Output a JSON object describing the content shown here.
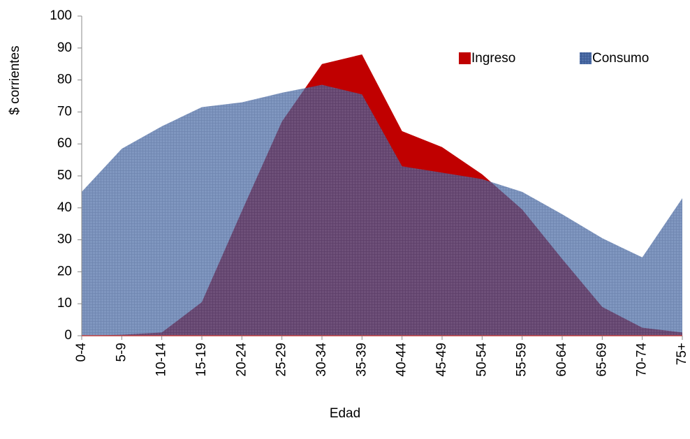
{
  "chart_data": {
    "type": "area",
    "xlabel": "Edad",
    "ylabel": "$ corrientes",
    "categories": [
      "0-4",
      "5-9",
      "10-14",
      "15-19",
      "20-24",
      "25-29",
      "30-34",
      "35-39",
      "40-44",
      "45-49",
      "50-54",
      "55-59",
      "60-64",
      "65-69",
      "70-74",
      "75+"
    ],
    "series": [
      {
        "name": "Ingreso",
        "color": "#c00000",
        "values": [
          0,
          0.3,
          1,
          10.5,
          39,
          67,
          85,
          88,
          64,
          59,
          50.5,
          39.5,
          24,
          9,
          2.5,
          1
        ]
      },
      {
        "name": "Consumo",
        "color": "#4f6fa8",
        "values": [
          45,
          58.5,
          65.5,
          71.5,
          73,
          76,
          78.5,
          75.5,
          53,
          51,
          49,
          45,
          38,
          30.5,
          24.5,
          43
        ]
      }
    ],
    "ylim": [
      0,
      100
    ],
    "yticks": [
      0,
      10,
      20,
      30,
      40,
      50,
      60,
      70,
      80,
      90,
      100
    ],
    "legend": "upper right"
  }
}
